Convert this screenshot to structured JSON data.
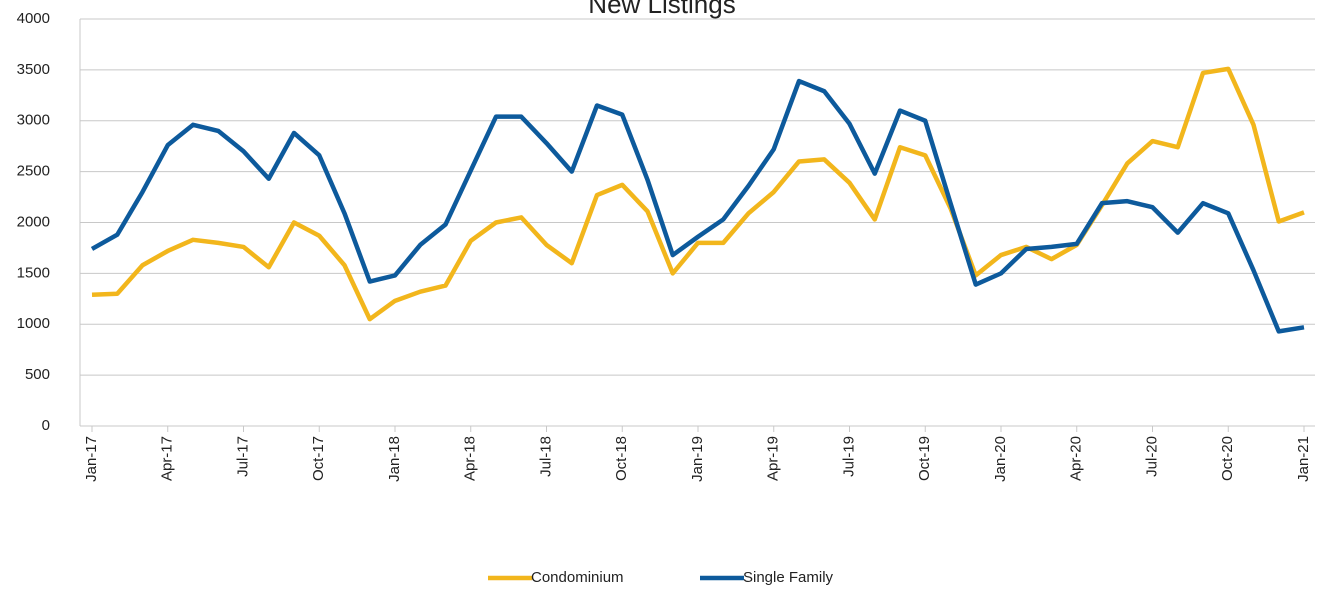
{
  "chart_data": {
    "type": "line",
    "title": "New Listings",
    "categories": [
      "Jan-17",
      null,
      null,
      "Apr-17",
      null,
      null,
      "Jul-17",
      null,
      null,
      "Oct-17",
      null,
      null,
      "Jan-18",
      null,
      null,
      "Apr-18",
      null,
      null,
      "Jul-18",
      null,
      null,
      "Oct-18",
      null,
      null,
      "Jan-19",
      null,
      null,
      "Apr-19",
      null,
      null,
      "Jul-19",
      null,
      null,
      "Oct-19",
      null,
      null,
      "Jan-20",
      null,
      null,
      "Apr-20",
      null,
      null,
      "Jul-20",
      null,
      null,
      "Oct-20",
      null,
      null,
      "Jan-21"
    ],
    "series": [
      {
        "name": "Condominium",
        "color": "#f2b61c",
        "values": [
          1290,
          1300,
          1580,
          1720,
          1830,
          1800,
          1760,
          1560,
          2000,
          1870,
          1580,
          1050,
          1230,
          1320,
          1380,
          1820,
          2000,
          2050,
          1780,
          1600,
          2270,
          2370,
          2110,
          1500,
          1800,
          1800,
          2090,
          2300,
          2600,
          2620,
          2390,
          2030,
          2740,
          2660,
          2140,
          1480,
          1680,
          1760,
          1640,
          1780,
          2170,
          2580,
          2800,
          2740,
          3470,
          3510,
          2960,
          2010,
          2100
        ]
      },
      {
        "name": "Single Family",
        "color": "#0d5a9c",
        "values": [
          1740,
          1880,
          2300,
          2760,
          2960,
          2900,
          2700,
          2430,
          2880,
          2660,
          2090,
          1420,
          1480,
          1780,
          1980,
          2510,
          3040,
          3040,
          2780,
          2500,
          3150,
          3060,
          2420,
          1680,
          1860,
          2030,
          2360,
          2720,
          3390,
          3290,
          2970,
          2480,
          3100,
          3000,
          2190,
          1390,
          1500,
          1740,
          1760,
          1790,
          2190,
          2210,
          2150,
          1900,
          2190,
          2090,
          1530,
          930,
          970
        ]
      }
    ],
    "ylim": [
      0,
      4000
    ],
    "yticks": [
      0,
      500,
      1000,
      1500,
      2000,
      2500,
      3000,
      3500,
      4000
    ],
    "grid": true,
    "legend": "bottom"
  }
}
